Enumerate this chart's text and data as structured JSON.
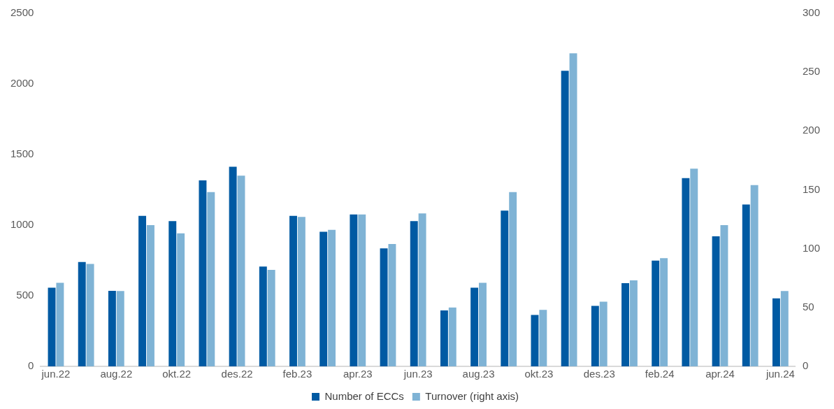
{
  "chart_data": {
    "type": "bar",
    "categories": [
      "jun.22",
      null,
      "aug.22",
      null,
      "okt.22",
      null,
      "des.22",
      null,
      "feb.23",
      null,
      "apr.23",
      null,
      "jun.23",
      null,
      "aug.23",
      null,
      "okt.23",
      null,
      "des.23",
      null,
      "feb.24",
      null,
      "apr.24",
      null,
      "jun.24"
    ],
    "series": [
      {
        "name": "Number of ECCs",
        "color": "#005aa3",
        "values": [
          557,
          739,
          535,
          1065,
          1028,
          1317,
          1413,
          707,
          1065,
          953,
          1076,
          835,
          1028,
          396,
          557,
          1103,
          364,
          2093,
          428,
          589,
          749,
          1333,
          921,
          1146,
          482
        ]
      },
      {
        "name": "Turnover (right axis)",
        "color": "#7fb3d5",
        "axis": "y2",
        "values": [
          71,
          87,
          64,
          120,
          113,
          148,
          162,
          82,
          127,
          116,
          129,
          104,
          130,
          50,
          71,
          148,
          48,
          266,
          55,
          73,
          92,
          168,
          120,
          154,
          64
        ]
      }
    ],
    "ylim": [
      0,
      2500
    ],
    "yticks": [
      0,
      500,
      1000,
      1500,
      2000,
      2500
    ],
    "y2lim": [
      0,
      300
    ],
    "y2ticks": [
      0,
      50,
      100,
      150,
      200,
      250,
      300
    ],
    "grid": false,
    "legend": "bottom"
  }
}
